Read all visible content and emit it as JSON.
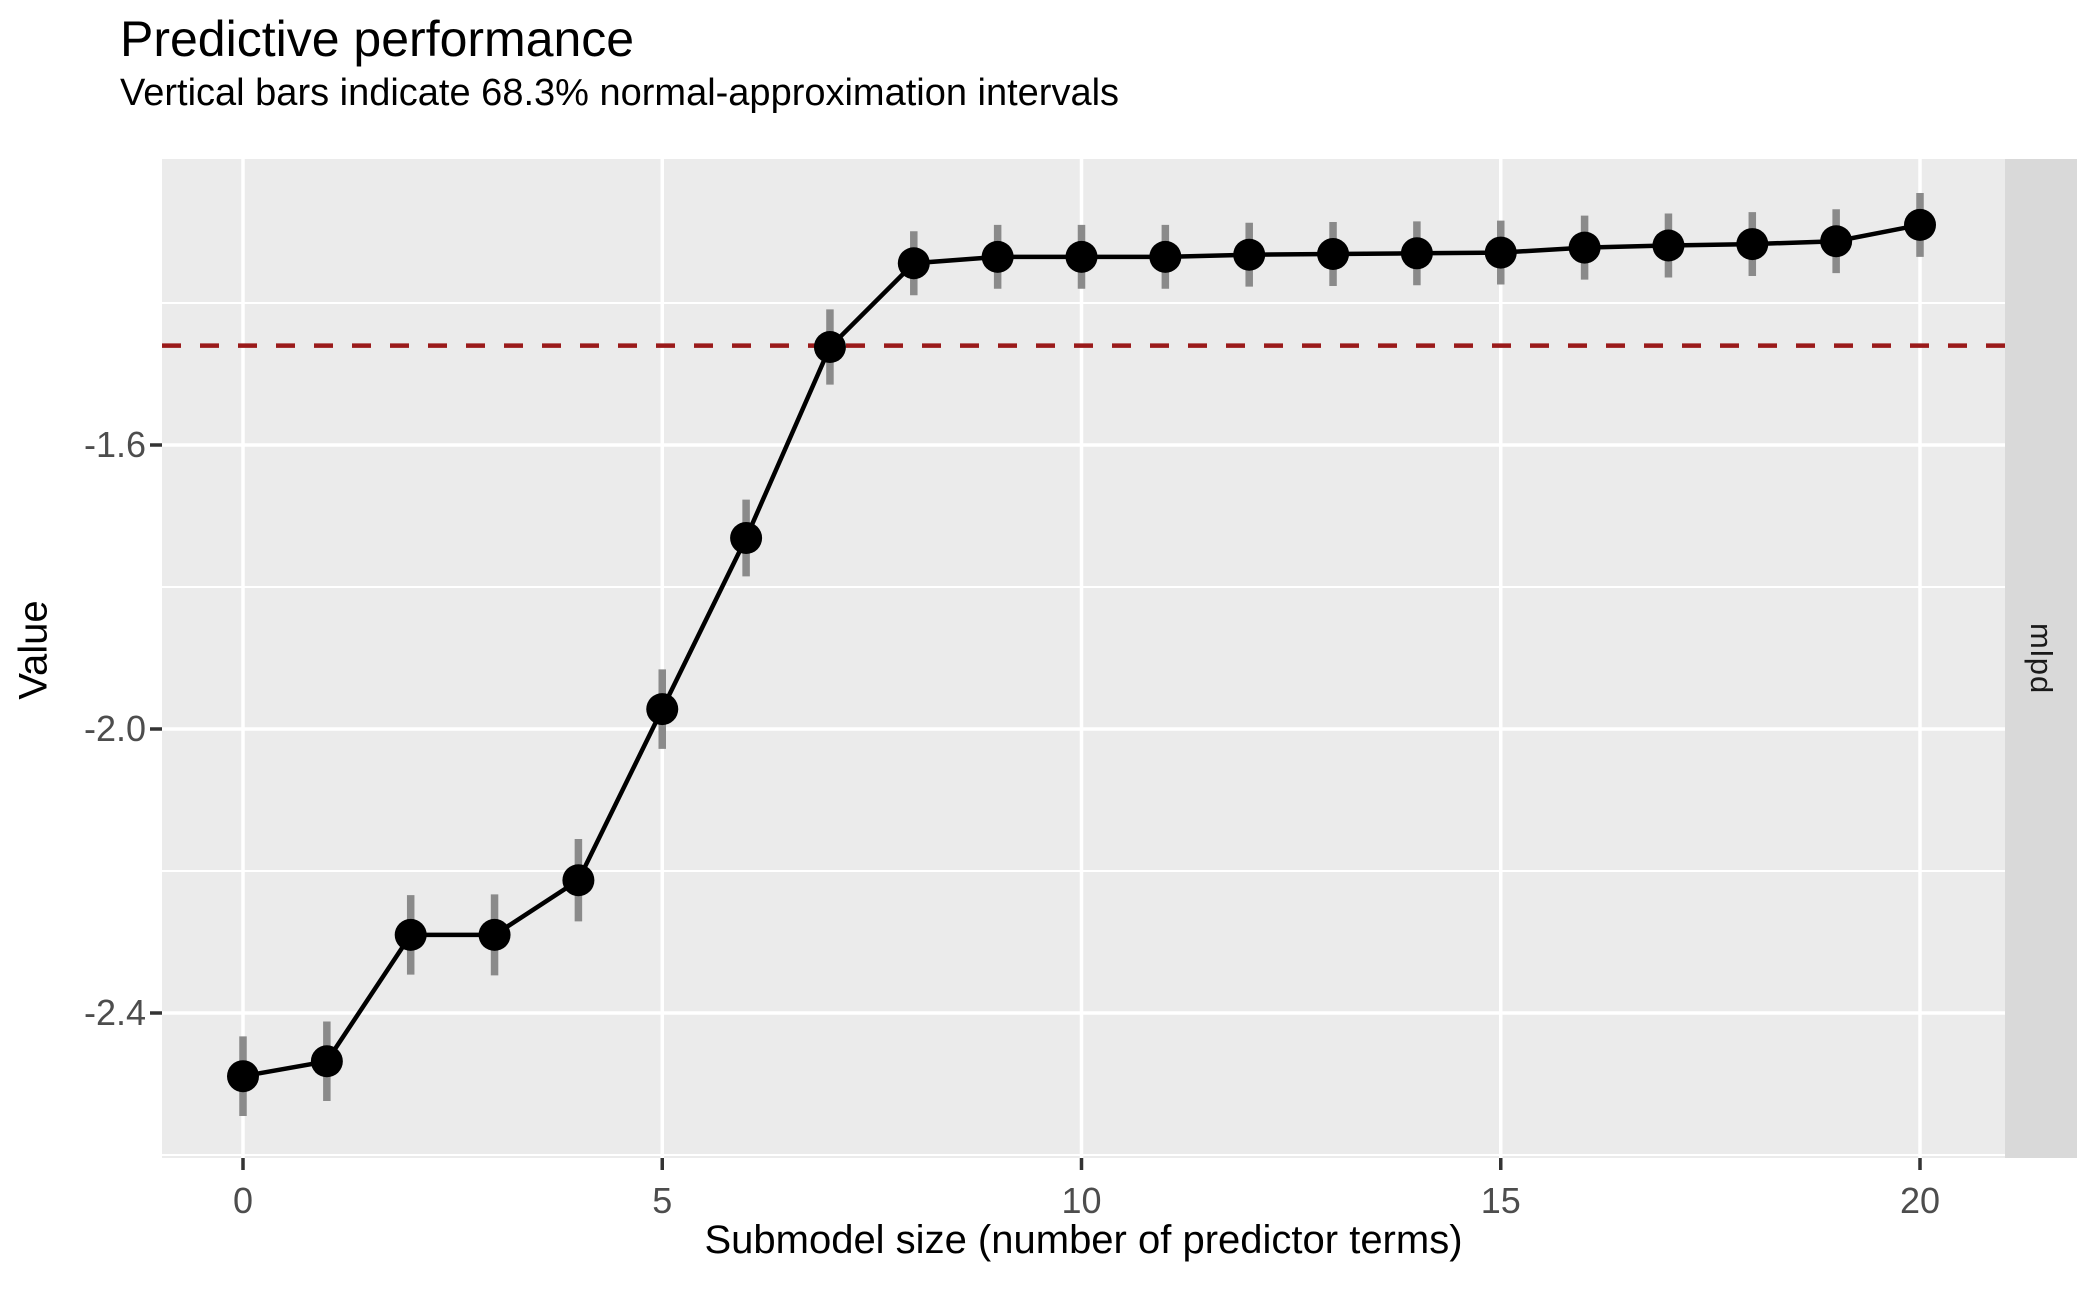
{
  "title": "Predictive performance",
  "subtitle": "Vertical bars indicate 68.3% normal-approximation intervals",
  "x_axis": {
    "label": "Submodel size (number of predictor terms)",
    "tick_labels": [
      "0",
      "5",
      "10",
      "15",
      "20"
    ],
    "tick_values": [
      0,
      5,
      10,
      15,
      20
    ]
  },
  "y_axis": {
    "label": "Value",
    "tick_labels": [
      "-1.6",
      "-2.0",
      "-2.4"
    ],
    "tick_values": [
      -1.6,
      -2.0,
      -2.4
    ]
  },
  "facet_strip_label": "mlpd",
  "colors": {
    "panel_background": "#EBEBEB",
    "strip_background": "#D9D9D9",
    "gridline": "#FFFFFF",
    "point": "#000000",
    "line": "#000000",
    "error_bar": "#8A8A8A",
    "reference_line": "#9A1A1A",
    "tick_text": "#4D4D4D",
    "tick_mark": "#333333"
  },
  "chart_data": {
    "type": "line",
    "title": "Predictive performance",
    "subtitle": "Vertical bars indicate 68.3% normal-approximation intervals",
    "xlabel": "Submodel size (number of predictor terms)",
    "ylabel": "Value",
    "facet_label": "mlpd",
    "x": [
      0,
      1,
      2,
      3,
      4,
      5,
      6,
      7,
      8,
      9,
      10,
      11,
      12,
      13,
      14,
      15,
      16,
      17,
      18,
      19,
      20
    ],
    "series": [
      {
        "name": "mlpd",
        "values": [
          -2.489,
          -2.468,
          -2.29,
          -2.29,
          -2.213,
          -1.972,
          -1.731,
          -1.462,
          -1.344,
          -1.335,
          -1.335,
          -1.335,
          -1.332,
          -1.331,
          -1.33,
          -1.329,
          -1.322,
          -1.319,
          -1.317,
          -1.313,
          -1.29
        ],
        "ci_half_width": [
          0.056,
          0.056,
          0.056,
          0.057,
          0.058,
          0.056,
          0.054,
          0.053,
          0.045,
          0.045,
          0.045,
          0.045,
          0.045,
          0.045,
          0.045,
          0.045,
          0.045,
          0.045,
          0.045,
          0.045,
          0.045
        ],
        "ci_level_note": "68.3% normal-approximation intervals"
      }
    ],
    "reference_line_y": -1.46,
    "reference_line_style": "dashed",
    "xlim": [
      -1,
      21
    ],
    "ylim": [
      -2.604,
      -1.197
    ],
    "x_major_gridlines": [
      0,
      5,
      10,
      15,
      20
    ],
    "y_major_gridlines": [
      -1.6,
      -2.0,
      -2.4
    ],
    "y_minor_gridlines": [
      -1.4,
      -1.8,
      -2.2,
      -2.6
    ],
    "grid": "on",
    "legend_position": "none"
  }
}
